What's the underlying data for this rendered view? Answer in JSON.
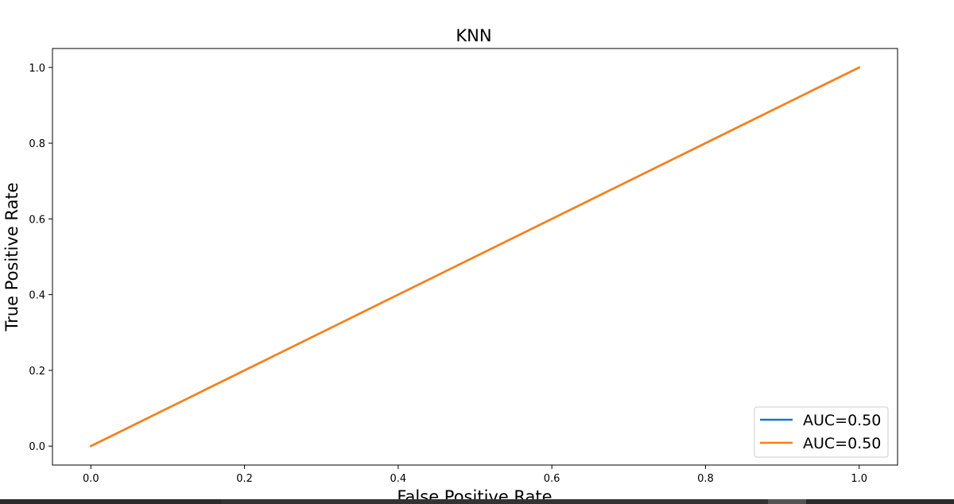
{
  "chart_data": {
    "type": "line",
    "title": "KNN",
    "xlabel": "False Positive Rate",
    "ylabel": "True Positive Rate",
    "xlim": [
      -0.05,
      1.05
    ],
    "ylim": [
      -0.05,
      1.05
    ],
    "xticks": [
      "0.0",
      "0.2",
      "0.4",
      "0.6",
      "0.8",
      "1.0"
    ],
    "yticks": [
      "0.0",
      "0.2",
      "0.4",
      "0.6",
      "0.8",
      "1.0"
    ],
    "grid": false,
    "legend_position": "lower-right",
    "series": [
      {
        "name": "AUC=0.50",
        "color": "#1f77b4",
        "x": [
          0.0,
          1.0
        ],
        "y": [
          0.0,
          1.0
        ]
      },
      {
        "name": "AUC=0.50",
        "color": "#ff7f0e",
        "x": [
          0.0,
          1.0
        ],
        "y": [
          0.0,
          1.0
        ]
      }
    ]
  }
}
